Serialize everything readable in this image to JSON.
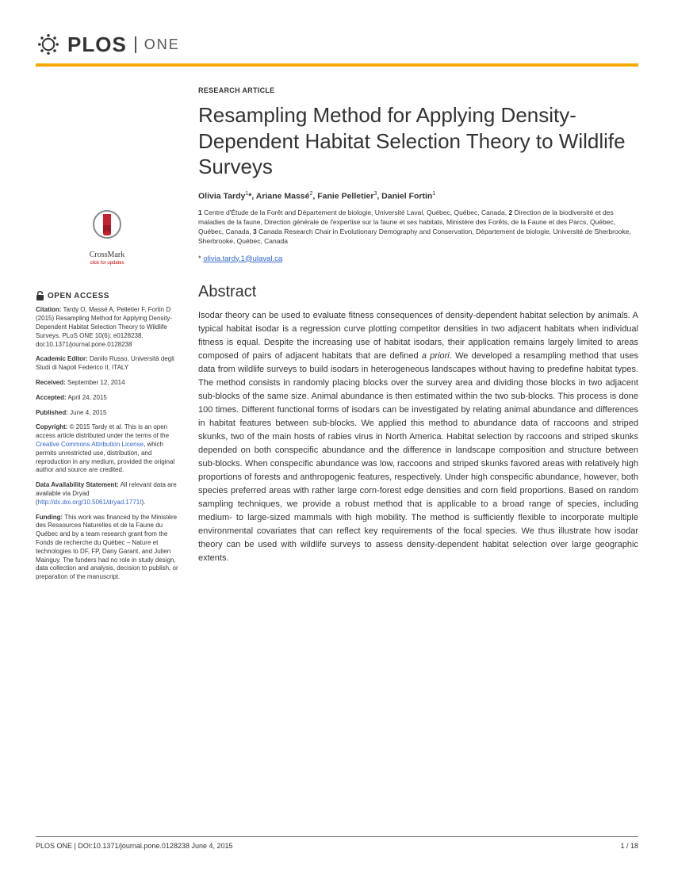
{
  "journal": {
    "name": "PLOS",
    "sub": "ONE"
  },
  "article": {
    "type": "RESEARCH ARTICLE",
    "title": "Resampling Method for Applying Density-Dependent Habitat Selection Theory to Wildlife Surveys",
    "authors_html": "Olivia Tardy<sup>1</sup>*, Ariane Massé<sup>2</sup>, Fanie Pelletier<sup>3</sup>, Daniel Fortin<sup>1</sup>",
    "affiliations": [
      {
        "n": "1",
        "text": "Centre d'Étude de la Forêt and Département de biologie, Université Laval, Québec, Québec, Canada,"
      },
      {
        "n": "2",
        "text": "Direction de la biodiversité et des maladies de la faune, Direction générale de l'expertise sur la faune et ses habitats, Ministère des Forêts, de la Faune et des Parcs, Québec, Québec, Canada,"
      },
      {
        "n": "3",
        "text": "Canada Research Chair in Evolutionary Demography and Conservation, Département de biologie, Université de Sherbrooke, Sherbrooke, Québec, Canada"
      }
    ],
    "corresp_marker": "*",
    "corresp_email": "olivia.tardy.1@ulaval.ca"
  },
  "crossmark": {
    "label": "CrossMark",
    "sub": "click for updates"
  },
  "sidebar": {
    "oa_title": "OPEN ACCESS",
    "citation_label": "Citation:",
    "citation": "Tardy O, Massé A, Pelletier F, Fortin D (2015) Resampling Method for Applying Density-Dependent Habitat Selection Theory to Wildlife Surveys. PLoS ONE 10(6): e0128238. doi:10.1371/journal.pone.0128238",
    "editor_label": "Academic Editor:",
    "editor": "Danilo Russo, Università degli Studi di Napoli Federico II, ITALY",
    "received_label": "Received:",
    "received": "September 12, 2014",
    "accepted_label": "Accepted:",
    "accepted": "April 24, 2015",
    "published_label": "Published:",
    "published": "June 4, 2015",
    "copyright_label": "Copyright:",
    "copyright_pre": "© 2015 Tardy et al. This is an open access article distributed under the terms of the ",
    "copyright_link": "Creative Commons Attribution License",
    "copyright_post": ", which permits unrestricted use, distribution, and reproduction in any medium, provided the original author and source are credited.",
    "data_label": "Data Availability Statement:",
    "data_pre": "All relevant data are available via Dryad (",
    "data_link": "http://dx.doi.org/10.5061/dryad.1771t",
    "data_post": ").",
    "funding_label": "Funding:",
    "funding": "This work was financed by the Ministère des Ressources Naturelles et de la Faune du Québec and by a team research grant from the Fonds de recherche du Québec – Nature et technologies to DF, FP, Dany Garant, and Julien Mainguy. The funders had no role in study design, data collection and analysis, decision to publish, or preparation of the manuscript."
  },
  "abstract": {
    "heading": "Abstract",
    "text": "Isodar theory can be used to evaluate fitness consequences of density-dependent habitat selection by animals. A typical habitat isodar is a regression curve plotting competitor densities in two adjacent habitats when individual fitness is equal. Despite the increasing use of habitat isodars, their application remains largely limited to areas composed of pairs of adjacent habitats that are defined a priori. We developed a resampling method that uses data from wildlife surveys to build isodars in heterogeneous landscapes without having to predefine habitat types. The method consists in randomly placing blocks over the survey area and dividing those blocks in two adjacent sub-blocks of the same size. Animal abundance is then estimated within the two sub-blocks. This process is done 100 times. Different functional forms of isodars can be investigated by relating animal abundance and differences in habitat features between sub-blocks. We applied this method to abundance data of raccoons and striped skunks, two of the main hosts of rabies virus in North America. Habitat selection by raccoons and striped skunks depended on both conspecific abundance and the difference in landscape composition and structure between sub-blocks. When conspecific abundance was low, raccoons and striped skunks favored areas with relatively high proportions of forests and anthropogenic features, respectively. Under high conspecific abundance, however, both species preferred areas with rather large corn-forest edge densities and corn field proportions. Based on random sampling techniques, we provide a robust method that is applicable to a broad range of species, including medium- to large-sized mammals with high mobility. The method is sufficiently flexible to incorporate multiple environmental covariates that can reflect key requirements of the focal species. We thus illustrate how isodar theory can be used with wildlife surveys to assess density-dependent habitat selection over large geographic extents."
  },
  "footer": {
    "left": "PLOS ONE | DOI:10.1371/journal.pone.0128238   June 4, 2015",
    "right": "1 / 18"
  }
}
